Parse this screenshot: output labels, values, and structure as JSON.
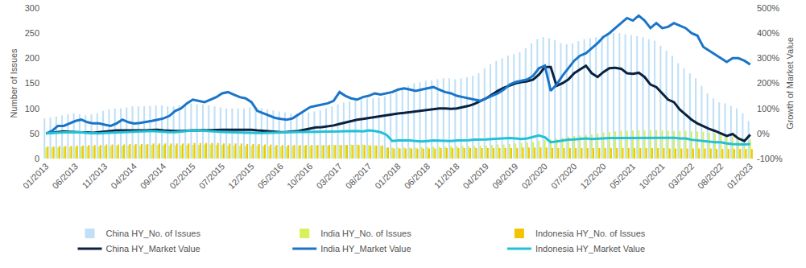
{
  "chart_data": {
    "type": "bar",
    "ylabel": "Number of Issues",
    "y2label": "Growth of Market Value",
    "grid": false,
    "legend": "bottom",
    "ylim": [
      0,
      300
    ],
    "yticks": [
      0,
      50,
      100,
      150,
      200,
      250,
      300
    ],
    "y2lim": [
      -100,
      500
    ],
    "y2ticks": [
      {
        "value": -100,
        "label": "-100%"
      },
      {
        "value": 0,
        "label": "0%"
      },
      {
        "value": 100,
        "label": "100%"
      },
      {
        "value": 200,
        "label": "200%"
      },
      {
        "value": 300,
        "label": "300%"
      },
      {
        "value": 400,
        "label": "400%"
      },
      {
        "value": 500,
        "label": "500%"
      }
    ],
    "categories": [
      "01/2013",
      null,
      null,
      null,
      null,
      "06/2013",
      null,
      null,
      null,
      null,
      "11/2013",
      null,
      null,
      null,
      null,
      "04/2014",
      null,
      null,
      null,
      null,
      "09/2014",
      null,
      null,
      null,
      null,
      "02/2015",
      null,
      null,
      null,
      null,
      "07/2015",
      null,
      null,
      null,
      null,
      "12/2015",
      null,
      null,
      null,
      null,
      "05/2016",
      null,
      null,
      null,
      null,
      "10/2016",
      null,
      null,
      null,
      null,
      "03/2017",
      null,
      null,
      null,
      null,
      "08/2017",
      null,
      null,
      null,
      null,
      "01/2018",
      null,
      null,
      null,
      null,
      "06/2018",
      null,
      null,
      null,
      null,
      "11/2018",
      null,
      null,
      null,
      null,
      "04/2019",
      null,
      null,
      null,
      null,
      "09/2019",
      null,
      null,
      null,
      null,
      "02/2020",
      null,
      null,
      null,
      null,
      "07/2020",
      null,
      null,
      null,
      null,
      "12/2020",
      null,
      null,
      null,
      null,
      "05/2021",
      null,
      null,
      null,
      null,
      "10/2021",
      null,
      null,
      null,
      null,
      "03/2022",
      null,
      null,
      null,
      null,
      "08/2022",
      null,
      null,
      null,
      null,
      "01/2023"
    ],
    "series": [
      {
        "name": "China HY_No. of Issues",
        "type": "bar",
        "color": "#bfe0f7",
        "values": [
          80,
          82,
          84,
          86,
          88,
          90,
          88,
          86,
          88,
          90,
          95,
          98,
          100,
          100,
          102,
          104,
          104,
          104,
          105,
          106,
          106,
          104,
          104,
          106,
          108,
          110,
          108,
          108,
          106,
          104,
          102,
          100,
          100,
          100,
          100,
          102,
          102,
          100,
          98,
          96,
          94,
          92,
          90,
          90,
          90,
          92,
          94,
          96,
          100,
          104,
          108,
          112,
          114,
          116,
          118,
          120,
          120,
          122,
          124,
          128,
          132,
          138,
          145,
          150,
          152,
          155,
          156,
          158,
          160,
          160,
          158,
          160,
          162,
          165,
          170,
          180,
          188,
          195,
          200,
          205,
          208,
          212,
          220,
          230,
          238,
          242,
          240,
          236,
          230,
          228,
          230,
          234,
          238,
          240,
          242,
          245,
          248,
          250,
          250,
          248,
          246,
          244,
          242,
          238,
          235,
          225,
          215,
          205,
          190,
          180,
          170,
          160,
          145,
          130,
          120,
          112,
          110,
          105,
          100,
          90,
          75
        ]
      },
      {
        "name": "India HY_No. of Issues",
        "type": "bar",
        "color": "#d9f05a",
        "values": [
          22,
          22,
          22,
          23,
          23,
          23,
          24,
          24,
          24,
          24,
          25,
          25,
          25,
          25,
          26,
          26,
          26,
          27,
          27,
          27,
          27,
          26,
          26,
          26,
          27,
          27,
          27,
          28,
          28,
          27,
          27,
          26,
          26,
          25,
          25,
          25,
          25,
          25,
          24,
          24,
          24,
          24,
          25,
          25,
          25,
          25,
          26,
          26,
          26,
          27,
          27,
          27,
          28,
          28,
          28,
          27,
          26,
          25,
          22,
          22,
          22,
          22,
          22,
          22,
          23,
          23,
          24,
          24,
          24,
          25,
          25,
          25,
          25,
          25,
          26,
          26,
          27,
          28,
          28,
          29,
          30,
          31,
          32,
          33,
          35,
          37,
          38,
          40,
          42,
          44,
          45,
          46,
          47,
          48,
          50,
          52,
          53,
          54,
          55,
          55,
          56,
          56,
          56,
          57,
          57,
          56,
          55,
          55,
          55,
          55,
          54,
          54,
          53,
          52,
          50,
          48,
          46,
          44,
          42,
          40,
          38
        ]
      },
      {
        "name": "Indonesia HY_No. of Issues",
        "type": "bar",
        "color": "#f5c400",
        "values": [
          24,
          24,
          25,
          25,
          25,
          26,
          26,
          27,
          27,
          27,
          28,
          28,
          28,
          28,
          29,
          29,
          29,
          29,
          30,
          30,
          30,
          30,
          30,
          30,
          30,
          31,
          31,
          31,
          31,
          31,
          30,
          30,
          30,
          30,
          29,
          29,
          29,
          28,
          28,
          27,
          27,
          27,
          27,
          27,
          27,
          27,
          27,
          27,
          27,
          27,
          27,
          27,
          27,
          27,
          27,
          26,
          26,
          26,
          22,
          20,
          20,
          20,
          20,
          20,
          20,
          20,
          20,
          21,
          21,
          21,
          21,
          21,
          21,
          21,
          21,
          21,
          21,
          21,
          21,
          21,
          21,
          22,
          22,
          22,
          22,
          22,
          21,
          21,
          21,
          21,
          21,
          21,
          21,
          21,
          21,
          21,
          21,
          21,
          21,
          21,
          21,
          21,
          21,
          21,
          21,
          21,
          20,
          20,
          20,
          20,
          20,
          20,
          20,
          20,
          19,
          19,
          19,
          19,
          19,
          19,
          19
        ]
      },
      {
        "name": "China HY_Market Value",
        "type": "line",
        "axis": "y2",
        "color": "#0a2240",
        "values": [
          0,
          3,
          5,
          8,
          7,
          5,
          4,
          4,
          3,
          5,
          8,
          10,
          12,
          12,
          12,
          10,
          10,
          12,
          14,
          15,
          12,
          10,
          10,
          10,
          12,
          12,
          12,
          12,
          14,
          14,
          15,
          15,
          15,
          15,
          15,
          15,
          12,
          10,
          8,
          6,
          5,
          6,
          8,
          10,
          15,
          20,
          24,
          25,
          28,
          32,
          38,
          44,
          50,
          55,
          58,
          62,
          66,
          70,
          74,
          78,
          80,
          82,
          85,
          88,
          92,
          95,
          97,
          100,
          100,
          98,
          100,
          105,
          110,
          118,
          128,
          140,
          155,
          170,
          182,
          192,
          200,
          205,
          208,
          215,
          235,
          265,
          265,
          190,
          200,
          215,
          240,
          255,
          270,
          240,
          225,
          245,
          260,
          262,
          258,
          240,
          238,
          242,
          225,
          195,
          185,
          160,
          135,
          125,
          95,
          75,
          55,
          40,
          28,
          18,
          10,
          0,
          -10,
          -2,
          -20,
          -30,
          -5
        ]
      },
      {
        "name": "India HY_Market Value",
        "type": "line",
        "axis": "y2",
        "color": "#1a75c9",
        "values": [
          0,
          10,
          30,
          30,
          40,
          50,
          55,
          45,
          40,
          40,
          35,
          30,
          40,
          55,
          45,
          40,
          42,
          45,
          50,
          55,
          60,
          70,
          90,
          100,
          120,
          135,
          130,
          125,
          135,
          145,
          160,
          165,
          155,
          145,
          140,
          125,
          90,
          80,
          70,
          62,
          58,
          55,
          60,
          75,
          90,
          105,
          110,
          115,
          120,
          130,
          165,
          150,
          140,
          135,
          145,
          150,
          160,
          155,
          160,
          165,
          175,
          180,
          175,
          170,
          175,
          180,
          185,
          175,
          165,
          160,
          150,
          145,
          140,
          135,
          130,
          140,
          150,
          160,
          175,
          195,
          205,
          210,
          215,
          230,
          260,
          270,
          170,
          195,
          230,
          260,
          290,
          310,
          320,
          340,
          360,
          385,
          400,
          420,
          440,
          460,
          450,
          470,
          450,
          420,
          440,
          420,
          425,
          440,
          430,
          420,
          400,
          390,
          345,
          330,
          315,
          300,
          285,
          300,
          300,
          290,
          275
        ]
      },
      {
        "name": "Indonesia HY_Market Value",
        "type": "line",
        "axis": "y2",
        "color": "#22c1d6",
        "values": [
          0,
          2,
          3,
          4,
          5,
          5,
          4,
          2,
          0,
          0,
          2,
          3,
          4,
          5,
          5,
          6,
          8,
          10,
          10,
          8,
          6,
          5,
          5,
          8,
          10,
          12,
          12,
          10,
          10,
          8,
          6,
          5,
          4,
          3,
          2,
          2,
          2,
          2,
          3,
          4,
          5,
          5,
          6,
          6,
          6,
          6,
          7,
          7,
          8,
          8,
          8,
          9,
          10,
          10,
          8,
          12,
          10,
          5,
          -5,
          -30,
          -28,
          -27,
          -28,
          -30,
          -32,
          -30,
          -28,
          -29,
          -30,
          -30,
          -28,
          -28,
          -27,
          -25,
          -25,
          -24,
          -22,
          -20,
          -18,
          -18,
          -20,
          -22,
          -20,
          -15,
          -8,
          -15,
          -35,
          -32,
          -28,
          -25,
          -24,
          -22,
          -20,
          -22,
          -20,
          -20,
          -18,
          -18,
          -18,
          -17,
          -18,
          -16,
          -17,
          -18,
          -18,
          -18,
          -18,
          -17,
          -20,
          -20,
          -25,
          -28,
          -30,
          -32,
          -35,
          -35,
          -40,
          -42,
          -43,
          -44,
          -42
        ]
      }
    ]
  }
}
